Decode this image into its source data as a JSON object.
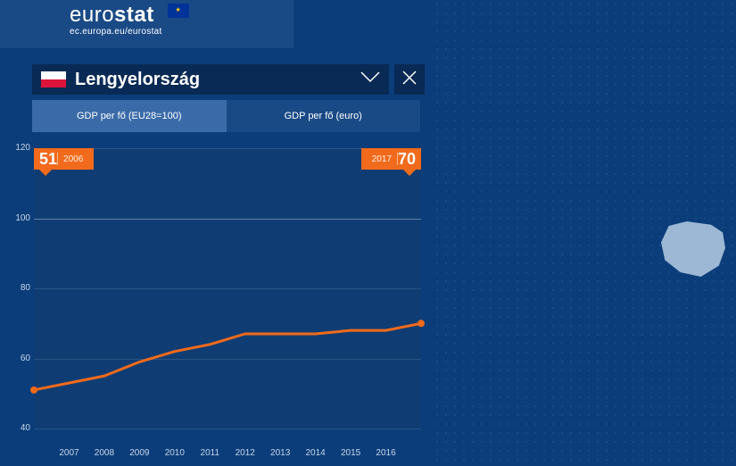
{
  "brand": {
    "pre": "euro",
    "bold": "stat",
    "url": "ec.europa.eu/eurostat"
  },
  "selector": {
    "country": "Lengyelország"
  },
  "tabs": {
    "active": "GDP per fő (EU28=100)",
    "inactive": "GDP per fő (euro)"
  },
  "chart": {
    "type": "line",
    "line_color": "#f26a1b",
    "line_width": 3,
    "marker_color": "#f26a1b",
    "marker_radius": 4,
    "background_color": "#0f3d73",
    "grid_color": "rgba(255,255,255,0.12)",
    "grid_emph_color": "rgba(255,255,255,0.35)",
    "ylim": [
      40,
      120
    ],
    "yticks": [
      40,
      60,
      80,
      100,
      120
    ],
    "xticks": [
      "2007",
      "2008",
      "2009",
      "2010",
      "2011",
      "2012",
      "2013",
      "2014",
      "2015",
      "2016"
    ],
    "x_years": [
      2006,
      2007,
      2008,
      2009,
      2010,
      2011,
      2012,
      2013,
      2014,
      2015,
      2016,
      2017
    ],
    "values": [
      51,
      53,
      55,
      59,
      62,
      64,
      67,
      67,
      67,
      68,
      68,
      70
    ],
    "start_badge": {
      "value": "51",
      "year": "2006"
    },
    "end_badge": {
      "value": "70",
      "year": "2017"
    },
    "badge_bg": "#f26a1b",
    "axis_label_color": "#c9d6e8",
    "axis_label_fontsize": 10
  },
  "map": {
    "highlight_fill": "#9db8d4"
  }
}
